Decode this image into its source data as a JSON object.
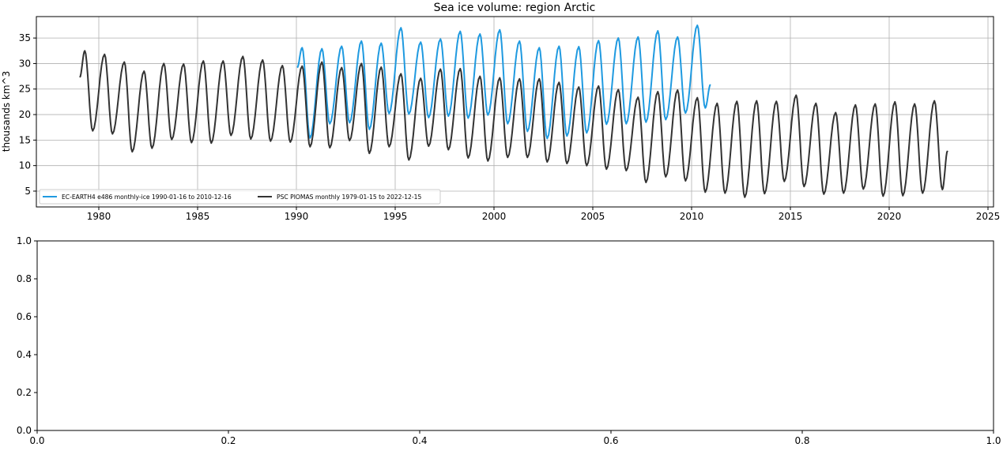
{
  "chart_data": [
    {
      "type": "line",
      "title": "Sea ice volume: region Arctic",
      "xlabel": "",
      "ylabel": "thousands km^3",
      "xlim": [
        1976.84,
        2025.28
      ],
      "ylim": [
        1.9,
        39.2
      ],
      "xticks": [
        1980,
        1985,
        1990,
        1995,
        2000,
        2005,
        2010,
        2015,
        2020,
        2025
      ],
      "xtick_labels": [
        "1980",
        "1985",
        "1990",
        "1995",
        "2000",
        "2005",
        "2010",
        "2015",
        "2020",
        "2025"
      ],
      "yticks": [
        5,
        10,
        15,
        20,
        25,
        30,
        35
      ],
      "ytick_labels": [
        "5",
        "10",
        "15",
        "20",
        "25",
        "30",
        "35"
      ],
      "grid": true,
      "legend_placement": "lower-left",
      "series": [
        {
          "name": "EC-EARTH4 e486 monthly-ice 1990-01-16 to 2010-12-16",
          "color": "#1f9ae0",
          "start": [
            "1990-01-16",
            29.2
          ],
          "end": [
            "2010-12-16",
            25.9
          ],
          "years": [
            1990,
            1991,
            1992,
            1993,
            1994,
            1995,
            1996,
            1997,
            1998,
            1999,
            2000,
            2001,
            2002,
            2003,
            2004,
            2005,
            2006,
            2007,
            2008,
            2009,
            2010
          ],
          "annual_max": [
            33.1,
            32.9,
            33.4,
            34.4,
            34.0,
            37.0,
            34.2,
            34.8,
            36.3,
            35.8,
            36.6,
            34.4,
            33.1,
            33.4,
            33.3,
            34.5,
            35.0,
            35.2,
            36.4,
            35.2,
            37.5
          ],
          "annual_min": [
            15.4,
            18.2,
            18.4,
            17.1,
            20.2,
            20.1,
            19.4,
            19.7,
            19.3,
            19.9,
            18.2,
            16.7,
            15.3,
            15.8,
            16.4,
            18.1,
            18.2,
            18.5,
            19.0,
            20.3,
            21.3
          ]
        },
        {
          "name": "PSC PIOMAS monthly 1979-01-15 to 2022-12-15",
          "color": "#333333",
          "start": [
            "1979-01-15",
            27.3
          ],
          "end": [
            "2022-12-15",
            12.9
          ],
          "years": [
            1979,
            1980,
            1981,
            1982,
            1983,
            1984,
            1985,
            1986,
            1987,
            1988,
            1989,
            1990,
            1991,
            1992,
            1993,
            1994,
            1995,
            1996,
            1997,
            1998,
            1999,
            2000,
            2001,
            2002,
            2003,
            2004,
            2005,
            2006,
            2007,
            2008,
            2009,
            2010,
            2011,
            2012,
            2013,
            2014,
            2015,
            2016,
            2017,
            2018,
            2019,
            2020,
            2021,
            2022
          ],
          "annual_max": [
            32.5,
            31.8,
            30.3,
            28.5,
            30.0,
            29.9,
            30.5,
            30.5,
            31.4,
            30.7,
            29.6,
            29.5,
            30.3,
            29.2,
            30.0,
            29.3,
            28.0,
            27.1,
            28.9,
            29.0,
            27.5,
            27.2,
            27.0,
            27.0,
            26.3,
            25.4,
            25.6,
            24.9,
            23.4,
            24.5,
            24.8,
            23.3,
            22.2,
            22.6,
            22.7,
            22.6,
            23.8,
            22.2,
            20.4,
            21.9,
            22.1,
            22.5,
            22.1,
            22.7
          ],
          "annual_min": [
            16.8,
            16.2,
            12.7,
            13.4,
            15.1,
            14.5,
            14.4,
            15.9,
            15.2,
            14.8,
            14.6,
            13.7,
            13.5,
            14.9,
            12.4,
            13.7,
            11.1,
            13.8,
            13.1,
            11.5,
            10.9,
            11.6,
            11.6,
            10.7,
            10.4,
            10.0,
            9.3,
            9.0,
            6.7,
            7.8,
            7.0,
            4.8,
            4.6,
            3.8,
            4.5,
            6.9,
            5.9,
            4.4,
            4.6,
            5.4,
            4.0,
            4.1,
            4.6,
            5.3
          ]
        }
      ]
    },
    {
      "type": "line",
      "title": "",
      "xlim": [
        0,
        1
      ],
      "ylim": [
        0,
        1
      ],
      "xtick_labels": [
        "0.0",
        "0.2",
        "0.4",
        "0.6",
        "0.8",
        "1.0"
      ],
      "ytick_labels": [
        "0.0",
        "0.2",
        "0.4",
        "0.6",
        "0.8",
        "1.0"
      ],
      "grid": false,
      "series": []
    }
  ]
}
